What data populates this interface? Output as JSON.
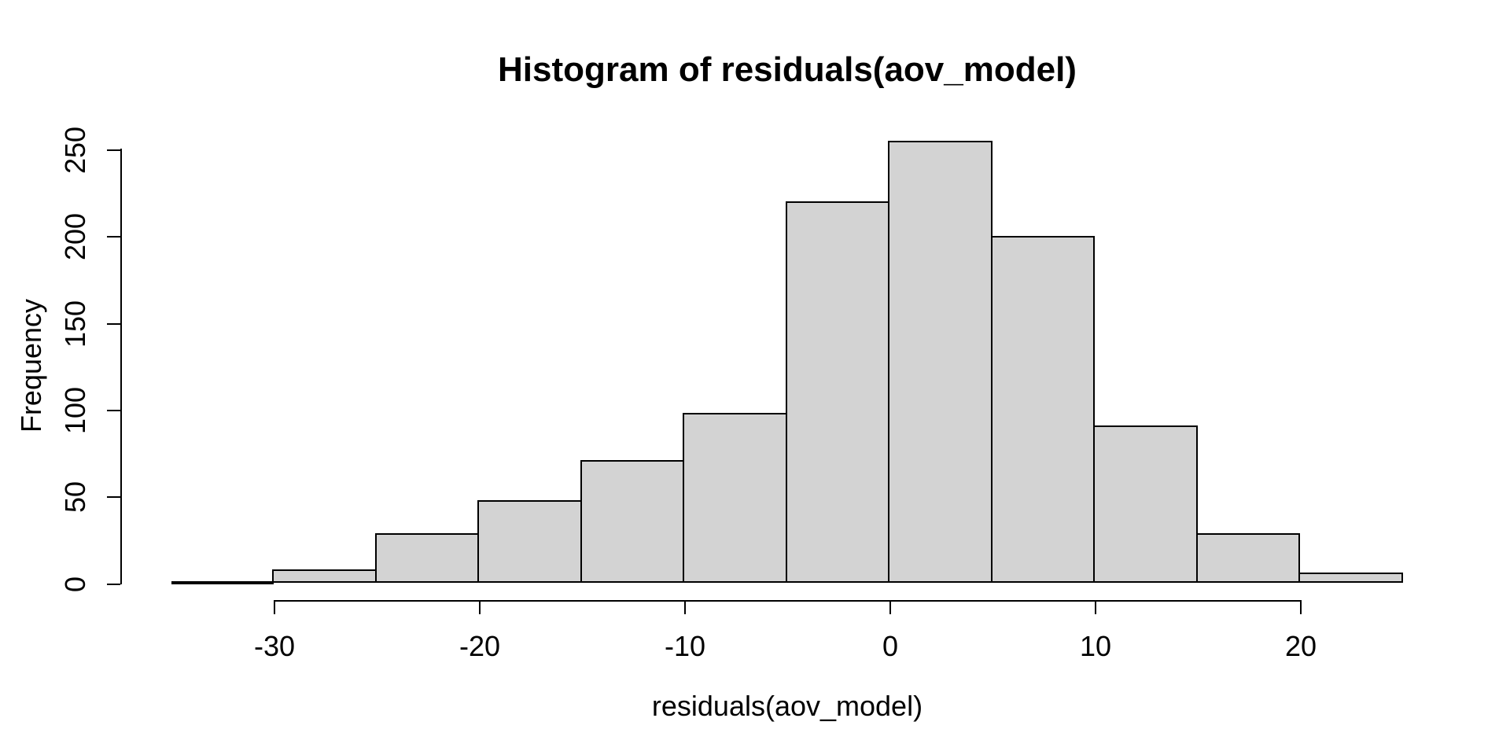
{
  "figure": {
    "title": "Histogram of residuals(aov_model)",
    "xlabel": "residuals(aov_model)",
    "ylabel": "Frequency"
  },
  "chart_data": {
    "type": "bar",
    "subtype": "histogram",
    "title": "Histogram of residuals(aov_model)",
    "xlabel": "residuals(aov_model)",
    "ylabel": "Frequency",
    "bin_edges": [
      -35,
      -30,
      -25,
      -20,
      -15,
      -10,
      -5,
      0,
      5,
      10,
      15,
      20,
      25
    ],
    "counts": [
      1,
      8,
      29,
      48,
      71,
      98,
      220,
      255,
      200,
      91,
      29,
      6
    ],
    "x_ticks": [
      -30,
      -20,
      -10,
      0,
      10,
      20
    ],
    "y_ticks": [
      0,
      50,
      100,
      150,
      200,
      250
    ],
    "xlim": [
      -35,
      25
    ],
    "ylim": [
      0,
      255
    ],
    "grid": false,
    "legend": false,
    "bar_fill": "#d3d3d3",
    "bar_border": "#000000",
    "text_color": "#000000",
    "background": "#ffffff"
  }
}
